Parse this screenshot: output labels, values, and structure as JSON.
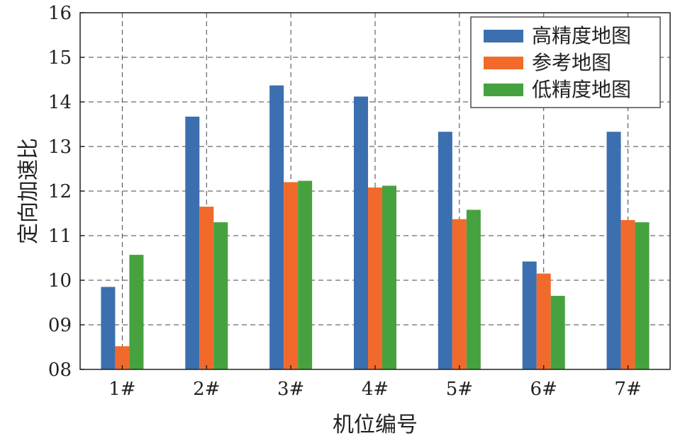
{
  "chart_data": {
    "type": "bar",
    "title": "",
    "xlabel": "机位编号",
    "ylabel": "定向加速比",
    "categories": [
      "1#",
      "2#",
      "3#",
      "4#",
      "5#",
      "6#",
      "7#"
    ],
    "series": [
      {
        "name": "高精度地图",
        "color": "#3c6faf",
        "values": [
          9.85,
          13.67,
          14.37,
          14.12,
          13.33,
          10.42,
          13.33
        ]
      },
      {
        "name": "参考地图",
        "color": "#f16a2b",
        "values": [
          8.52,
          11.65,
          12.2,
          12.08,
          11.37,
          10.15,
          11.35
        ]
      },
      {
        "name": "低精度地图",
        "color": "#46a23e",
        "values": [
          10.57,
          11.3,
          12.23,
          12.12,
          11.58,
          9.65,
          11.3
        ]
      }
    ],
    "ylim": [
      8,
      16
    ],
    "yticks": [
      "08",
      "09",
      "10",
      "11",
      "12",
      "13",
      "14",
      "15",
      "16"
    ],
    "grid": true,
    "legend_position": "top-right"
  }
}
